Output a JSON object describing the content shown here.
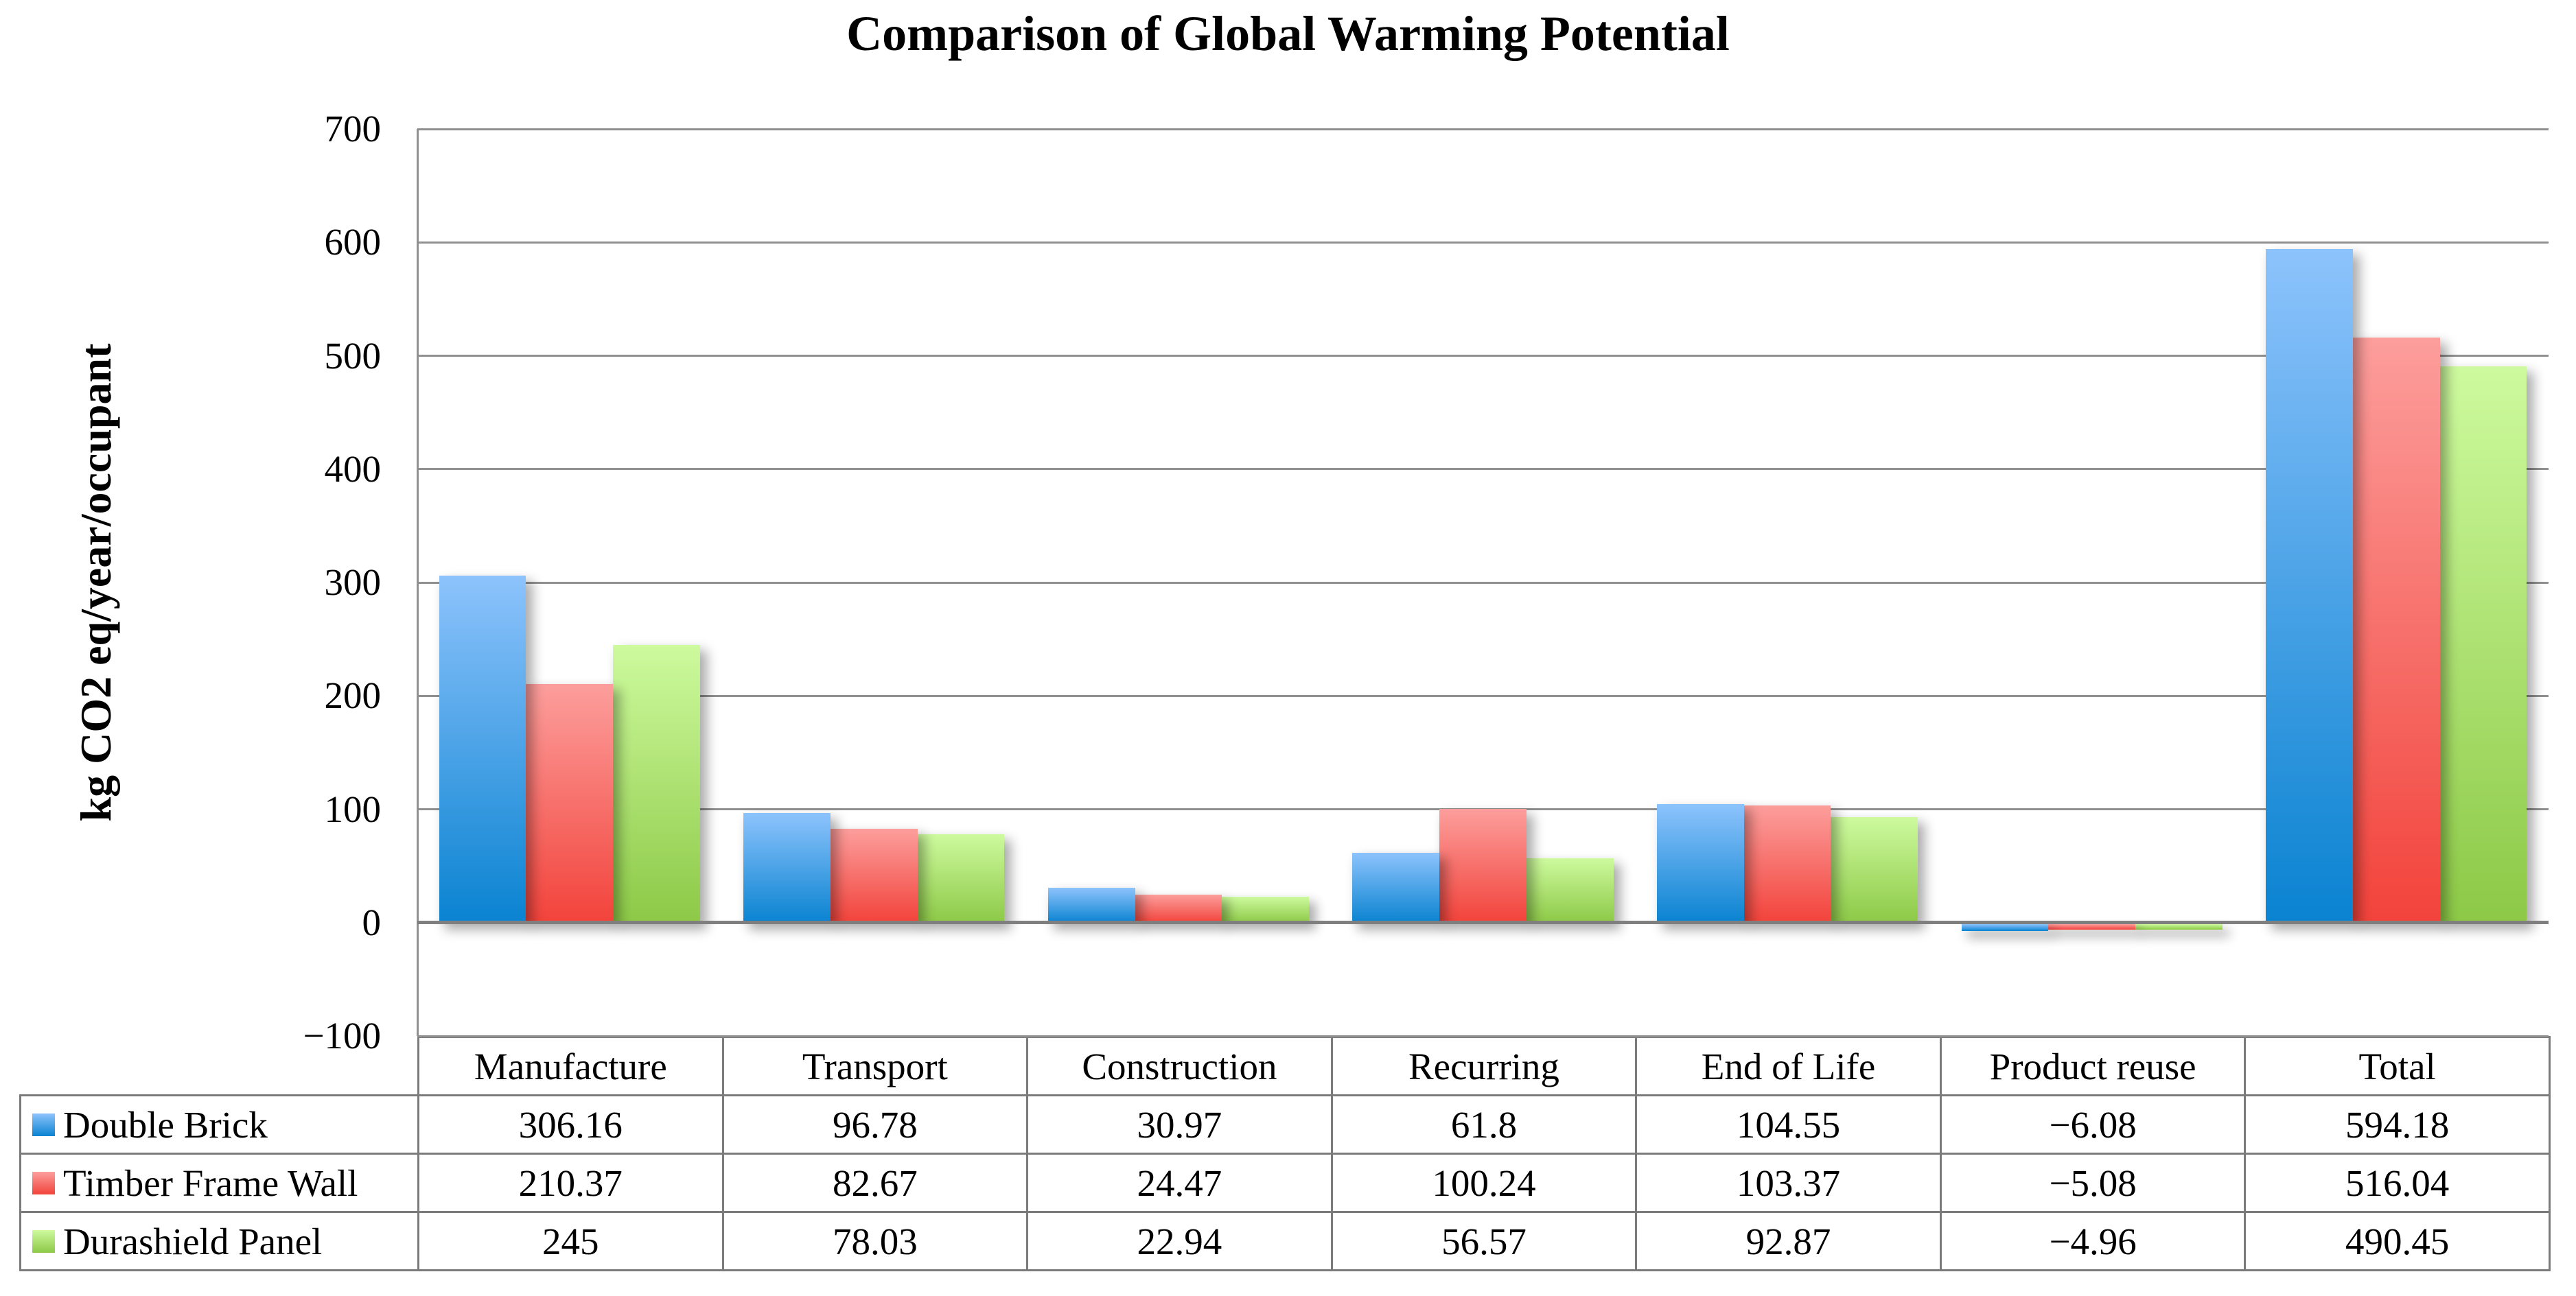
{
  "chart_data": {
    "type": "bar",
    "title": "Comparison of Global Warming Potential",
    "ylabel": "kg CO2 eq/year/occupant",
    "xlabel": "",
    "categories": [
      "Manufacture",
      "Transport",
      "Construction",
      "Recurring",
      "End of Life",
      "Product reuse",
      "Total"
    ],
    "series": [
      {
        "name": "Double Brick",
        "color_top": "#8DC3FC",
        "color_bottom": "#0A83D1",
        "values": [
          306.16,
          96.78,
          30.97,
          61.8,
          104.55,
          -6.08,
          594.18
        ]
      },
      {
        "name": "Timber Frame Wall",
        "color_top": "#FC9E9C",
        "color_bottom": "#F2433B",
        "values": [
          210.37,
          82.67,
          24.47,
          100.24,
          103.37,
          -5.08,
          516.04
        ]
      },
      {
        "name": "Durashield Panel",
        "color_top": "#CDFA9E",
        "color_bottom": "#8DC947",
        "values": [
          245,
          78.03,
          22.94,
          56.57,
          92.87,
          -4.96,
          490.45
        ]
      }
    ],
    "ylim": [
      -100,
      700
    ],
    "yticks": [
      700,
      600,
      500,
      400,
      300,
      200,
      100,
      0,
      -100
    ],
    "ytick_step": 100,
    "grid": true,
    "gap_width_percent": 50,
    "legend_position": "table-left",
    "minus_glyph": "−"
  },
  "colors": {
    "background": "#ffffff",
    "gridline": "#909090",
    "axis_line": "#7f7f7f",
    "table_border": "#7b7b7b",
    "text": "#000000"
  }
}
